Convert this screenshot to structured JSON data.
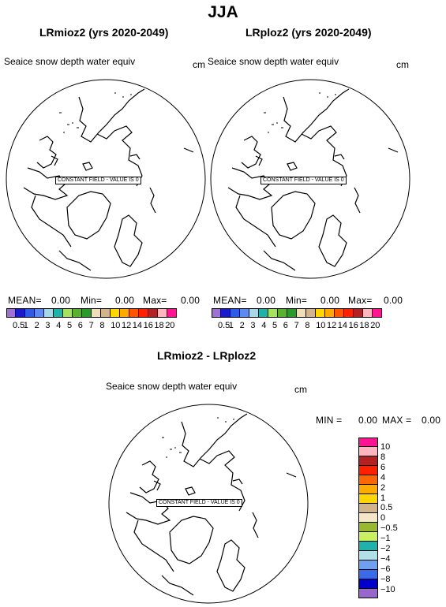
{
  "title": "JJA",
  "colors": [
    "#9966cc",
    "#0000cc",
    "#3355ee",
    "#5c8ff0",
    "#99c2f0",
    "#20b2aa",
    "#00a000",
    "#7fd400",
    "#99b233",
    "#cccc00",
    "#f5deb3",
    "#d2b48c",
    "#ffd700",
    "#ffaa00",
    "#ff6600",
    "#ff2200",
    "#b22222",
    "#ffb6c1",
    "#ff1493"
  ],
  "left_panel": {
    "subtitle": "LRmioz2 (yrs 2020-2049)",
    "variable": "Seaice snow depth water equiv",
    "units": "cm",
    "note": "CONSTANT FIELD - VALUE IS 0",
    "stats": {
      "mean_label": "MEAN=",
      "mean": "0.00",
      "min_label": "Min=",
      "min": "0.00",
      "max_label": "Max=",
      "max": "0.00"
    },
    "colorbar": {
      "swatches": [
        "#a070d8",
        "#1a1acc",
        "#2e5ae6",
        "#5c8af0",
        "#a8d8e8",
        "#20b2aa",
        "#a8e060",
        "#5cb030",
        "#2a9a2a",
        "#eedfb8",
        "#d2b48c",
        "#ffd700",
        "#ffaa00",
        "#ff5500",
        "#ff2000",
        "#b22222",
        "#ffb6c1",
        "#ff1493"
      ],
      "ticks": [
        "0.5",
        "1",
        "2",
        "3",
        "4",
        "5",
        "6",
        "7",
        "8",
        "10",
        "12",
        "14",
        "16",
        "18",
        "20"
      ]
    }
  },
  "right_panel": {
    "subtitle": "LRploz2 (yrs 2020-2049)",
    "variable": "Seaice snow depth water equiv",
    "units": "cm",
    "note": "CONSTANT FIELD - VALUE IS 0",
    "stats": {
      "mean_label": "MEAN=",
      "mean": "0.00",
      "min_label": "Min=",
      "min": "0.00",
      "max_label": "Max=",
      "max": "0.00"
    },
    "colorbar": {
      "swatches": [
        "#a070d8",
        "#1a1acc",
        "#2e5ae6",
        "#5c8af0",
        "#a8d8e8",
        "#20b2aa",
        "#a8e060",
        "#5cb030",
        "#2a9a2a",
        "#eedfb8",
        "#d2b48c",
        "#ffd700",
        "#ffaa00",
        "#ff5500",
        "#ff2000",
        "#b22222",
        "#ffb6c1",
        "#ff1493"
      ],
      "ticks": [
        "0.5",
        "1",
        "2",
        "3",
        "4",
        "5",
        "6",
        "7",
        "8",
        "10",
        "12",
        "14",
        "16",
        "18",
        "20"
      ]
    }
  },
  "diff_panel": {
    "subtitle": "LRmioz2 - LRploz2",
    "variable": "Seaice snow depth water equiv",
    "units": "cm",
    "note": "CONSTANT FIELD - VALUE IS 0",
    "stats": {
      "min_label": "MIN =",
      "min": "0.00",
      "max_label": "MAX =",
      "max": "0.00"
    },
    "colorbar": {
      "swatches": [
        "#ff1493",
        "#ffb6c1",
        "#b22222",
        "#ff2000",
        "#ff6600",
        "#ffaa00",
        "#ffd700",
        "#d2b48c",
        "#f5e6c8",
        "#98b832",
        "#c8f060",
        "#20b2aa",
        "#b0e0e8",
        "#6fa0f0",
        "#3a6ae8",
        "#0000cc",
        "#9966cc"
      ],
      "ticks": [
        "10",
        "8",
        "6",
        "4",
        "2",
        "1",
        "0.5",
        "0",
        "−0.5",
        "−1",
        "−2",
        "−4",
        "−6",
        "−8",
        "−10"
      ]
    }
  }
}
